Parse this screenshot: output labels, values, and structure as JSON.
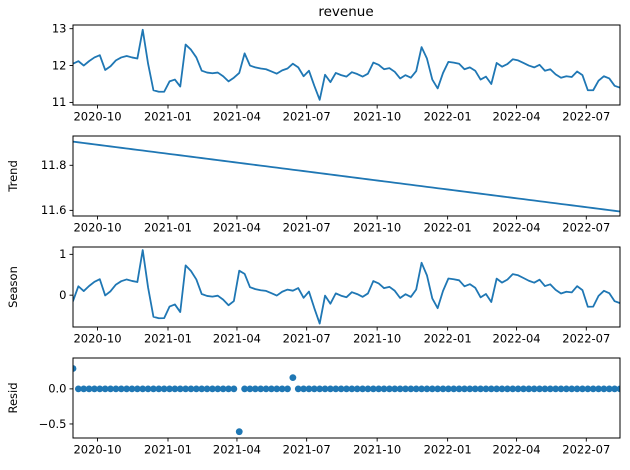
{
  "figure": {
    "title": "revenue",
    "background_color": "#ffffff",
    "line_color": "#1f77b4",
    "marker_color": "#1f77b4",
    "axis_color": "#000000"
  },
  "chart_data": {
    "type": "line",
    "title": "revenue",
    "description": "Seasonal decomposition of weekly revenue: observed, Trend, Season, Resid panels sharing a date x-axis",
    "x_start_date": "2020-08-30",
    "x_step_days": 7,
    "n_points": 103,
    "x_tick_labels": [
      "2020-10",
      "2021-01",
      "2021-04",
      "2021-07",
      "2021-10",
      "2022-01",
      "2022-04",
      "2022-07"
    ],
    "x_tick_dates": [
      "2020-10-01",
      "2021-01-01",
      "2021-04-01",
      "2021-07-01",
      "2021-10-01",
      "2022-01-01",
      "2022-04-01",
      "2022-07-01"
    ],
    "grid": false,
    "legend": false,
    "panels": [
      {
        "name": "observed",
        "ylabel": "",
        "kind": "line",
        "ylim": [
          10.93,
          13.1
        ],
        "yticks": [
          [
            11,
            "11"
          ],
          [
            12,
            "12"
          ],
          [
            13,
            "13"
          ]
        ]
      },
      {
        "name": "trend",
        "ylabel": "Trend",
        "kind": "line",
        "ylim": [
          11.575,
          11.93
        ],
        "yticks": [
          [
            11.6,
            "11.6"
          ],
          [
            11.8,
            "11.8"
          ]
        ]
      },
      {
        "name": "seasonal",
        "ylabel": "Season",
        "kind": "line",
        "ylim": [
          -0.78,
          1.18
        ],
        "yticks": [
          [
            0,
            "0"
          ],
          [
            1,
            "1"
          ]
        ]
      },
      {
        "name": "resid",
        "ylabel": "Resid",
        "kind": "scatter",
        "ylim": [
          -0.7,
          0.44
        ],
        "yticks": [
          [
            -0.5,
            "−0.5"
          ],
          [
            0.0,
            "0.0"
          ]
        ]
      }
    ],
    "observed": [
      12.05,
      12.12,
      12.0,
      12.12,
      12.22,
      12.28,
      11.88,
      11.98,
      12.14,
      12.22,
      12.26,
      12.22,
      12.19,
      12.97,
      12.05,
      11.33,
      11.29,
      11.29,
      11.57,
      11.62,
      11.43,
      12.57,
      12.43,
      12.22,
      11.86,
      11.81,
      11.79,
      11.81,
      11.71,
      11.57,
      11.67,
      11.8,
      12.33,
      12.0,
      11.95,
      11.92,
      11.9,
      11.84,
      11.78,
      11.87,
      11.92,
      12.05,
      11.95,
      11.71,
      11.86,
      11.45,
      11.07,
      11.75,
      11.55,
      11.8,
      11.74,
      11.7,
      11.82,
      11.77,
      11.7,
      11.78,
      12.08,
      12.02,
      11.9,
      11.93,
      11.83,
      11.65,
      11.74,
      11.67,
      11.85,
      12.5,
      12.19,
      11.62,
      11.38,
      11.8,
      12.1,
      12.08,
      12.05,
      11.9,
      11.95,
      11.86,
      11.62,
      11.7,
      11.5,
      12.07,
      11.97,
      12.04,
      12.17,
      12.14,
      12.07,
      12.0,
      11.95,
      12.02,
      11.86,
      11.9,
      11.76,
      11.67,
      11.71,
      11.69,
      11.84,
      11.74,
      11.33,
      11.33,
      11.59,
      11.71,
      11.65,
      11.45,
      11.4
    ],
    "trend": {
      "kind": "linear",
      "start": 11.905,
      "end": 11.595
    },
    "resid": {
      "default": 0.0,
      "outliers": [
        {
          "index": 0,
          "date": "2020-08-30",
          "value": 0.29
        },
        {
          "index": 31,
          "date": "2021-04-04",
          "value": -0.61
        },
        {
          "index": 41,
          "date": "2021-06-13",
          "value": 0.16
        }
      ]
    },
    "seasonal_note": "seasonal = observed - trend - resid"
  }
}
